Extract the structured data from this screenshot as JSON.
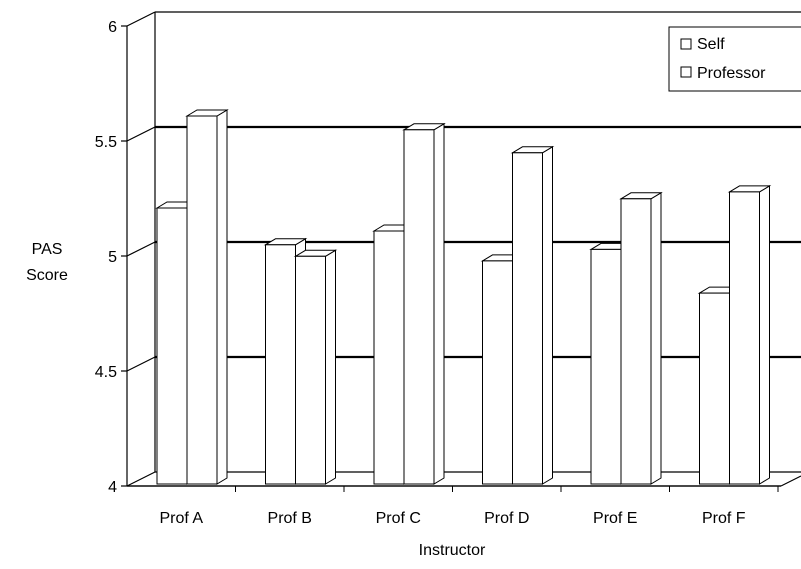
{
  "chart_data": {
    "type": "bar",
    "categories": [
      "Prof A",
      "Prof B",
      "Prof C",
      "Prof D",
      "Prof E",
      "Prof F"
    ],
    "series": [
      {
        "name": "Self",
        "values": [
          5.2,
          5.04,
          5.1,
          4.97,
          5.02,
          4.83
        ]
      },
      {
        "name": "Professor",
        "values": [
          5.6,
          4.99,
          5.54,
          5.44,
          5.24,
          5.27
        ]
      }
    ],
    "xlabel": "Instructor",
    "ylabel_lines": [
      "PAS",
      "Score"
    ],
    "ylim": [
      4,
      6
    ],
    "yticks": [
      "4",
      "4.5",
      "5",
      "5.5",
      "6"
    ],
    "grid": true,
    "legend_position": "top-right",
    "bar_fill": "#ffffff",
    "bar_stroke": "#000000"
  }
}
